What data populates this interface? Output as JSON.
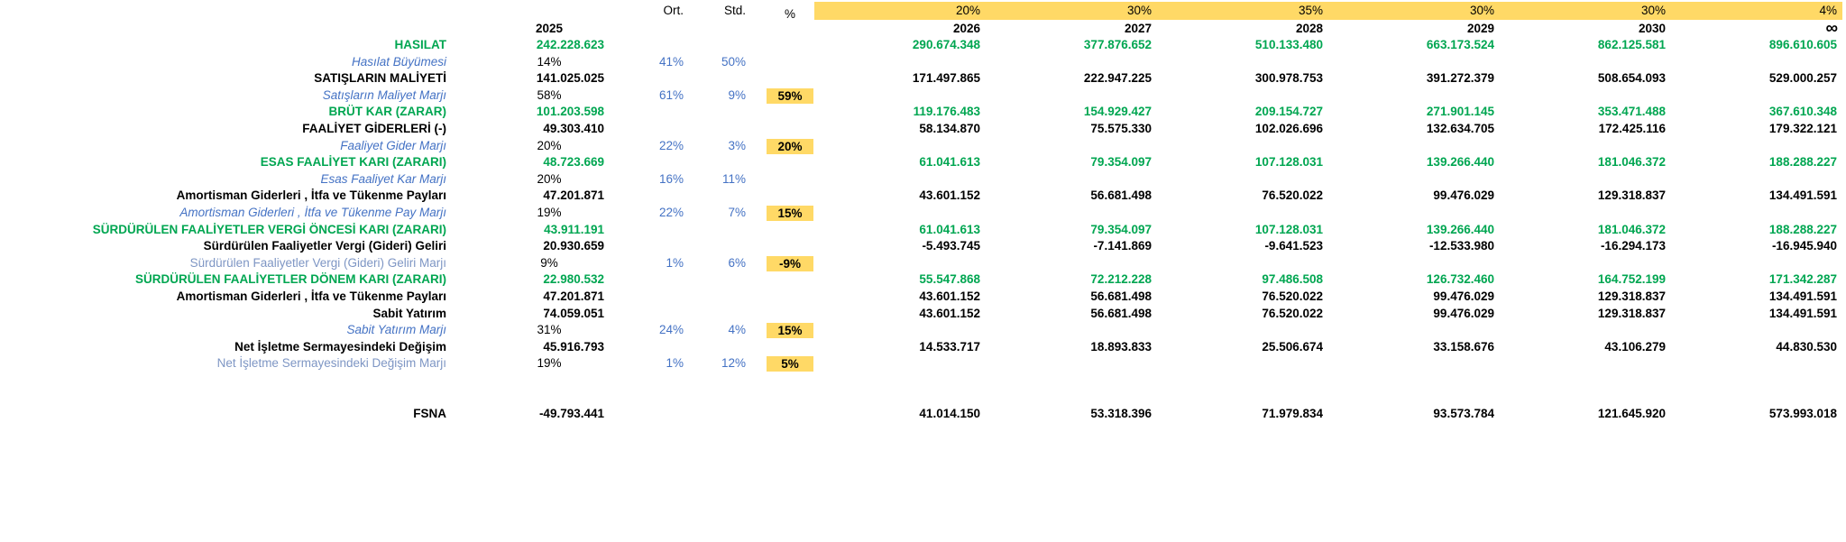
{
  "colors": {
    "green": "#00A651",
    "blue": "#4472C4",
    "light_blue": "#7E96C4",
    "highlight": "#FFD966"
  },
  "header": {
    "stat_cols": {
      "avg": "Ort.",
      "std": "Std.",
      "pct": "%"
    },
    "base_year": "2025",
    "year_cols": [
      {
        "weight": "20%",
        "year": "2026"
      },
      {
        "weight": "30%",
        "year": "2027"
      },
      {
        "weight": "35%",
        "year": "2028"
      },
      {
        "weight": "30%",
        "year": "2029"
      },
      {
        "weight": "30%",
        "year": "2030"
      },
      {
        "weight": "4%",
        "year": "∞"
      }
    ]
  },
  "rows": [
    {
      "style": "green",
      "label": "HASILAT",
      "v2025": "242.228.623",
      "avg": "",
      "std": "",
      "pct": "",
      "years": [
        "290.674.348",
        "377.876.652",
        "510.133.480",
        "663.173.524",
        "862.125.581",
        "896.610.605"
      ]
    },
    {
      "style": "margin",
      "label": "Hasılat Büyümesi",
      "v2025": "14%",
      "avg": "41%",
      "std": "50%",
      "pct": "",
      "years": [
        "",
        "",
        "",
        "",
        "",
        ""
      ]
    },
    {
      "style": "black",
      "label": "SATIŞLARIN MALİYETİ",
      "v2025": "141.025.025",
      "avg": "",
      "std": "",
      "pct": "",
      "years": [
        "171.497.865",
        "222.947.225",
        "300.978.753",
        "391.272.379",
        "508.654.093",
        "529.000.257"
      ]
    },
    {
      "style": "margin",
      "label": "Satışların Maliyet Marjı",
      "v2025": "58%",
      "avg": "61%",
      "std": "9%",
      "pct": "59%",
      "years": [
        "",
        "",
        "",
        "",
        "",
        ""
      ]
    },
    {
      "style": "green",
      "label": "BRÜT KAR (ZARAR)",
      "v2025": "101.203.598",
      "avg": "",
      "std": "",
      "pct": "",
      "years": [
        "119.176.483",
        "154.929.427",
        "209.154.727",
        "271.901.145",
        "353.471.488",
        "367.610.348"
      ]
    },
    {
      "style": "black",
      "label": "FAALİYET GİDERLERİ (-)",
      "v2025": "49.303.410",
      "avg": "",
      "std": "",
      "pct": "",
      "years": [
        "58.134.870",
        "75.575.330",
        "102.026.696",
        "132.634.705",
        "172.425.116",
        "179.322.121"
      ]
    },
    {
      "style": "margin",
      "label": "Faaliyet Gider Marjı",
      "v2025": "20%",
      "avg": "22%",
      "std": "3%",
      "pct": "20%",
      "years": [
        "",
        "",
        "",
        "",
        "",
        ""
      ]
    },
    {
      "style": "green",
      "label": "ESAS FAALİYET KARI (ZARARI)",
      "v2025": "48.723.669",
      "avg": "",
      "std": "",
      "pct": "",
      "years": [
        "61.041.613",
        "79.354.097",
        "107.128.031",
        "139.266.440",
        "181.046.372",
        "188.288.227"
      ]
    },
    {
      "style": "margin",
      "label": "Esas Faaliyet Kar Marjı",
      "v2025": "20%",
      "avg": "16%",
      "std": "11%",
      "pct": "",
      "years": [
        "",
        "",
        "",
        "",
        "",
        ""
      ]
    },
    {
      "style": "black",
      "label": "Amortisman Giderleri , İtfa ve Tükenme Payları",
      "v2025": "47.201.871",
      "avg": "",
      "std": "",
      "pct": "",
      "years": [
        "43.601.152",
        "56.681.498",
        "76.520.022",
        "99.476.029",
        "129.318.837",
        "134.491.591"
      ]
    },
    {
      "style": "margin",
      "label": "Amortisman Giderleri , İtfa ve Tükenme Pay Marjı",
      "v2025": "19%",
      "avg": "22%",
      "std": "7%",
      "pct": "15%",
      "years": [
        "",
        "",
        "",
        "",
        "",
        ""
      ]
    },
    {
      "style": "green",
      "label": "SÜRDÜRÜLEN FAALİYETLER VERGİ ÖNCESİ KARI (ZARARI)",
      "v2025": "43.911.191",
      "avg": "",
      "std": "",
      "pct": "",
      "years": [
        "61.041.613",
        "79.354.097",
        "107.128.031",
        "139.266.440",
        "181.046.372",
        "188.288.227"
      ]
    },
    {
      "style": "black",
      "label": "Sürdürülen Faaliyetler Vergi (Gideri) Geliri",
      "v2025": "20.930.659",
      "avg": "",
      "std": "",
      "pct": "",
      "years": [
        "-5.493.745",
        "-7.141.869",
        "-9.641.523",
        "-12.533.980",
        "-16.294.173",
        "-16.945.940"
      ]
    },
    {
      "style": "marginlight",
      "label": "Sürdürülen Faaliyetler Vergi (Gideri) Geliri Marjı",
      "v2025": "9%",
      "avg": "1%",
      "std": "6%",
      "pct": "-9%",
      "years": [
        "",
        "",
        "",
        "",
        "",
        ""
      ]
    },
    {
      "style": "green",
      "label": "SÜRDÜRÜLEN FAALİYETLER DÖNEM KARI (ZARARI)",
      "v2025": "22.980.532",
      "avg": "",
      "std": "",
      "pct": "",
      "years": [
        "55.547.868",
        "72.212.228",
        "97.486.508",
        "126.732.460",
        "164.752.199",
        "171.342.287"
      ]
    },
    {
      "style": "black",
      "label": "Amortisman Giderleri , İtfa ve Tükenme Payları",
      "v2025": "47.201.871",
      "avg": "",
      "std": "",
      "pct": "",
      "years": [
        "43.601.152",
        "56.681.498",
        "76.520.022",
        "99.476.029",
        "129.318.837",
        "134.491.591"
      ]
    },
    {
      "style": "black",
      "label": "Sabit Yatırım",
      "v2025": "74.059.051",
      "avg": "",
      "std": "",
      "pct": "",
      "years": [
        "43.601.152",
        "56.681.498",
        "76.520.022",
        "99.476.029",
        "129.318.837",
        "134.491.591"
      ]
    },
    {
      "style": "margin",
      "label": "Sabit Yatırım Marjı",
      "v2025": "31%",
      "avg": "24%",
      "std": "4%",
      "pct": "15%",
      "years": [
        "",
        "",
        "",
        "",
        "",
        ""
      ]
    },
    {
      "style": "black",
      "label": "Net İşletme Sermayesindeki Değişim",
      "v2025": "45.916.793",
      "avg": "",
      "std": "",
      "pct": "",
      "years": [
        "14.533.717",
        "18.893.833",
        "25.506.674",
        "33.158.676",
        "43.106.279",
        "44.830.530"
      ]
    },
    {
      "style": "marginlight",
      "label": "Net İşletme Sermayesindeki Değişim Marjı",
      "v2025": "19%",
      "avg": "1%",
      "std": "12%",
      "pct": "5%",
      "years": [
        "",
        "",
        "",
        "",
        "",
        ""
      ]
    },
    {
      "style": "blank",
      "label": "",
      "v2025": "",
      "avg": "",
      "std": "",
      "pct": "",
      "years": [
        "",
        "",
        "",
        "",
        "",
        ""
      ]
    },
    {
      "style": "blank",
      "label": "",
      "v2025": "",
      "avg": "",
      "std": "",
      "pct": "",
      "years": [
        "",
        "",
        "",
        "",
        "",
        ""
      ]
    },
    {
      "style": "black",
      "label": "FSNA",
      "v2025": "-49.793.441",
      "avg": "",
      "std": "",
      "pct": "",
      "years": [
        "41.014.150",
        "53.318.396",
        "71.979.834",
        "93.573.784",
        "121.645.920",
        "573.993.018"
      ]
    }
  ]
}
